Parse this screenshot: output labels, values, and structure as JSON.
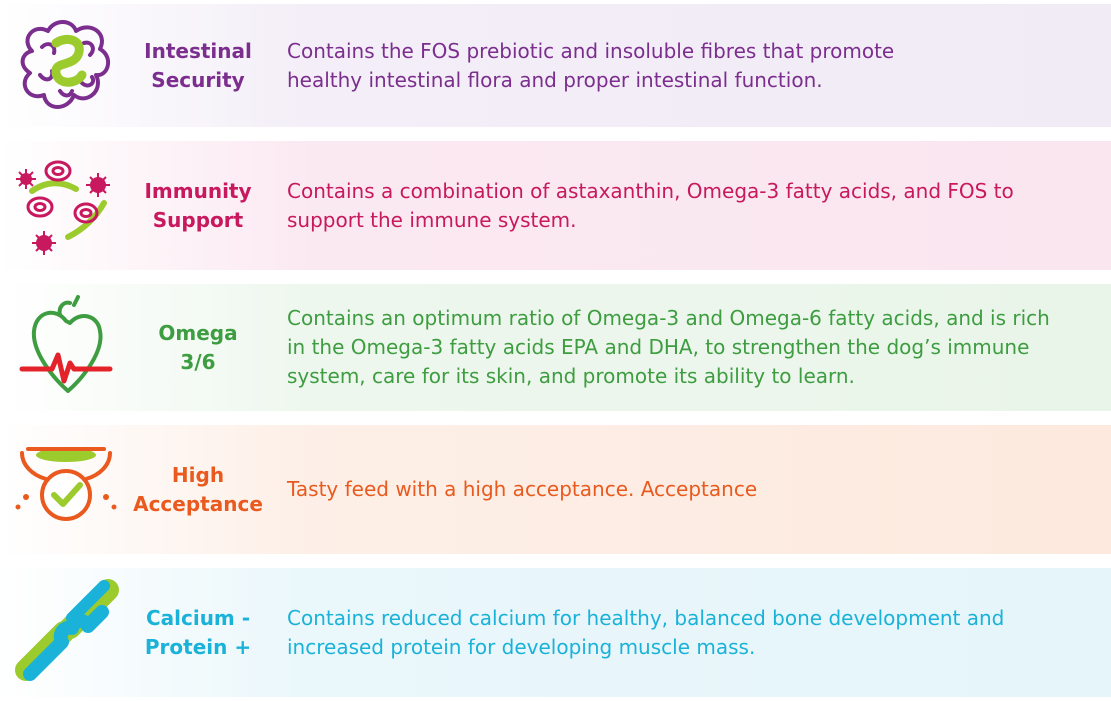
{
  "colors": {
    "intestinal": "#7b2e8e",
    "immunity": "#c8185e",
    "omega": "#3d9d40",
    "acceptance": "#ea5a1e",
    "calcium": "#1ab2d9",
    "lime_accent": "#9ccb2e"
  },
  "benefits": [
    {
      "icon": "intestine-icon",
      "title_lines": [
        "Intestinal",
        "Security"
      ],
      "description_lines": [
        "Contains the FOS prebiotic and insoluble fibres that promote",
        "healthy intestinal flora and proper intestinal function."
      ]
    },
    {
      "icon": "immune-cells-icon",
      "title_lines": [
        "Immunity",
        "Support"
      ],
      "description_lines": [
        "Contains a combination of astaxanthin, Omega-3 fatty acids, and FOS to",
        "support the immune system."
      ]
    },
    {
      "icon": "heart-pulse-icon",
      "title_lines": [
        "Omega",
        "3/6"
      ],
      "description_lines": [
        "Contains an optimum ratio of Omega-3 and Omega-6 fatty acids, and is rich",
        "in the Omega-3 fatty acids EPA and DHA, to strengthen the dog’s immune",
        "system, care for its skin, and promote its ability to learn."
      ]
    },
    {
      "icon": "food-bowl-check-icon",
      "title_lines": [
        "High",
        "Acceptance"
      ],
      "description_lines": [
        "Tasty feed with a high acceptance. Acceptance"
      ]
    },
    {
      "icon": "bone-joint-icon",
      "title_lines": [
        "Calcium -",
        "Protein +"
      ],
      "description_lines": [
        "Contains reduced calcium for healthy, balanced bone development and",
        "increased protein for developing muscle mass."
      ]
    }
  ]
}
